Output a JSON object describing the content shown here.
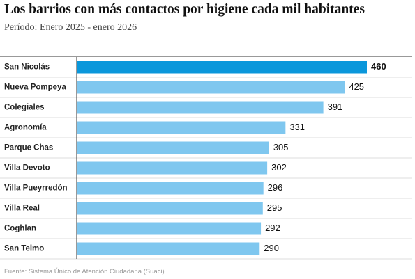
{
  "chart_data": {
    "type": "bar",
    "orientation": "horizontal",
    "title": "Los barrios con más contactos por higiene cada mil habitantes",
    "subtitle": "Período: Enero 2025 - enero 2026",
    "categories": [
      "San Nicolás",
      "Nueva Pompeya",
      "Colegiales",
      "Agronomía",
      "Parque Chas",
      "Villa Devoto",
      "Villa Pueyrredón",
      "Villa Real",
      "Coghlan",
      "San Telmo"
    ],
    "values": [
      460,
      425,
      391,
      331,
      305,
      302,
      296,
      295,
      292,
      290
    ],
    "color": "#7fc7ef",
    "highlight_color": "#0a97db",
    "highlight": 0,
    "source": "Fuente: Sistema Único de Atención Ciudadana (Suaci)"
  }
}
